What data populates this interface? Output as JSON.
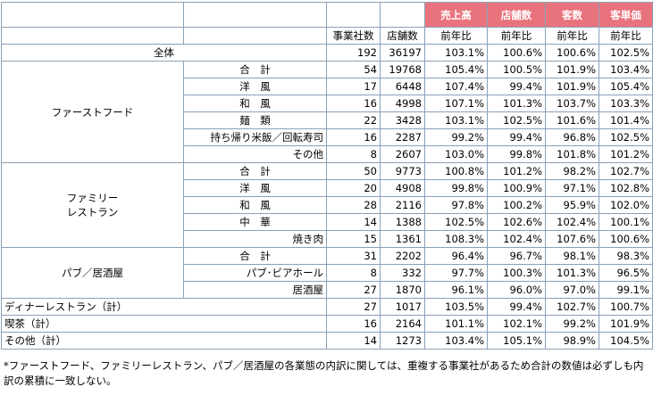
{
  "table": {
    "header1": [
      "売上高",
      "店舗数",
      "客数",
      "客単価"
    ],
    "header2": [
      "事業社数",
      "店舗数",
      "前年比",
      "前年比",
      "前年比",
      "前年比"
    ],
    "rows": [
      {
        "label": "全体",
        "values": [
          192,
          36197,
          "103.1%",
          "100.6%",
          "100.6%",
          "102.5%"
        ]
      },
      {
        "group": "ファーストフード",
        "items": [
          {
            "label": "合　計",
            "values": [
              54,
              19768,
              "105.4%",
              "100.5%",
              "101.9%",
              "103.4%"
            ]
          },
          {
            "label": "洋　風",
            "values": [
              17,
              6448,
              "107.4%",
              "99.4%",
              "101.9%",
              "105.4%"
            ]
          },
          {
            "label": "和　風",
            "values": [
              16,
              4998,
              "107.1%",
              "101.3%",
              "103.7%",
              "103.3%"
            ]
          },
          {
            "label": "麺　類",
            "values": [
              22,
              3428,
              "103.1%",
              "102.5%",
              "101.6%",
              "101.4%"
            ]
          },
          {
            "label": "持ち帰り米飯／回転寿司",
            "values": [
              16,
              2287,
              "99.2%",
              "99.4%",
              "96.8%",
              "102.5%"
            ]
          },
          {
            "label": "その他",
            "values": [
              8,
              2607,
              "103.0%",
              "99.8%",
              "101.8%",
              "101.2%"
            ]
          }
        ]
      },
      {
        "group": "ファミリー\nレストラン",
        "items": [
          {
            "label": "合　計",
            "values": [
              50,
              9773,
              "100.8%",
              "101.2%",
              "98.2%",
              "102.7%"
            ]
          },
          {
            "label": "洋　風",
            "values": [
              20,
              4908,
              "99.8%",
              "100.9%",
              "97.1%",
              "102.8%"
            ]
          },
          {
            "label": "和　風",
            "values": [
              28,
              2116,
              "97.8%",
              "100.2%",
              "95.9%",
              "102.0%"
            ]
          },
          {
            "label": "中　華",
            "values": [
              14,
              1388,
              "102.5%",
              "102.6%",
              "102.4%",
              "100.1%"
            ]
          },
          {
            "label": "焼き肉",
            "values": [
              15,
              1361,
              "108.3%",
              "102.4%",
              "107.6%",
              "100.6%"
            ]
          }
        ]
      },
      {
        "group": "パブ／居酒屋",
        "items": [
          {
            "label": "合　計",
            "values": [
              31,
              2202,
              "96.4%",
              "96.7%",
              "98.1%",
              "98.3%"
            ]
          },
          {
            "label": "パブ･ビアホール",
            "values": [
              8,
              332,
              "97.7%",
              "100.3%",
              "101.3%",
              "96.5%"
            ]
          },
          {
            "label": "居酒屋",
            "values": [
              27,
              1870,
              "96.1%",
              "96.0%",
              "97.0%",
              "99.1%"
            ]
          }
        ]
      },
      {
        "label": "ディナーレストラン（計）",
        "values": [
          27,
          1017,
          "103.5%",
          "99.4%",
          "102.7%",
          "100.7%"
        ]
      },
      {
        "label": "喫茶（計）",
        "values": [
          16,
          2164,
          "101.1%",
          "102.1%",
          "99.2%",
          "101.9%"
        ]
      },
      {
        "label": "その他（計）",
        "values": [
          14,
          1273,
          "103.4%",
          "105.1%",
          "98.9%",
          "104.5%"
        ]
      }
    ]
  },
  "footnote": "*ファーストフード、ファミリーレストラン、パブ／居酒屋の各業態の内訳に関しては、重複する事業社があるため合計の数値は必ずしも内訳の累積に一致しない。"
}
